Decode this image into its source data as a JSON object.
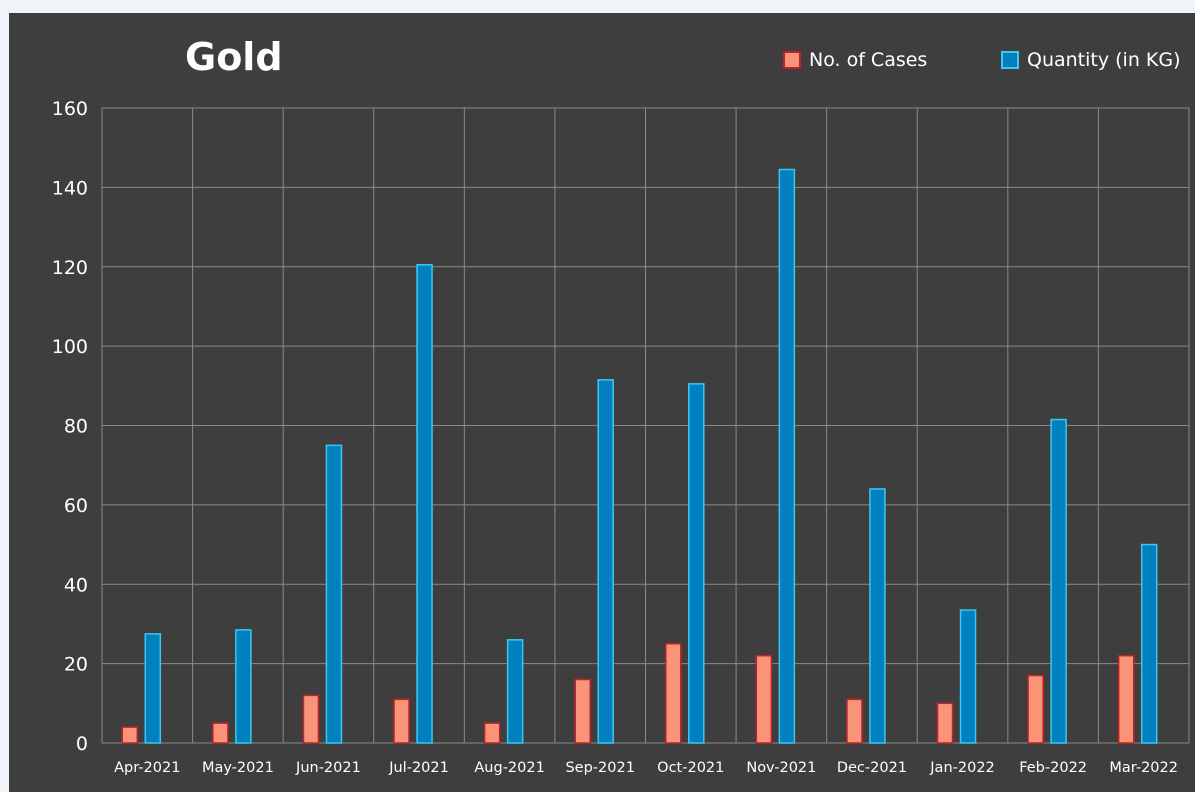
{
  "chart_data": {
    "type": "bar",
    "title": "Gold",
    "categories": [
      "Apr-2021",
      "May-2021",
      "Jun-2021",
      "Jul-2021",
      "Aug-2021",
      "Sep-2021",
      "Oct-2021",
      "Nov-2021",
      "Dec-2021",
      "Jan-2022",
      "Feb-2022",
      "Mar-2022"
    ],
    "series": [
      {
        "name": "No. of Cases",
        "values": [
          4,
          5,
          12,
          11,
          5,
          16,
          25,
          22,
          11,
          10,
          17,
          22
        ],
        "color": "#f99478",
        "border": "#c0242a"
      },
      {
        "name": "Quantity (in KG)",
        "values": [
          27.5,
          28.5,
          75,
          120.5,
          26,
          91.5,
          90.5,
          144.5,
          64,
          33.5,
          81.5,
          50
        ],
        "color": "#0180c0",
        "border": "#3ec6f0"
      }
    ],
    "yticks": [
      0,
      20,
      40,
      60,
      80,
      100,
      120,
      140,
      160
    ],
    "ylim": [
      0,
      160
    ],
    "grid": true,
    "legend_position": "top-right",
    "colors": {
      "panel_bg": "#3e3e3e",
      "page_bg": "#eef4f7",
      "grid": "#8a8a8a",
      "text": "#ffffff"
    }
  }
}
